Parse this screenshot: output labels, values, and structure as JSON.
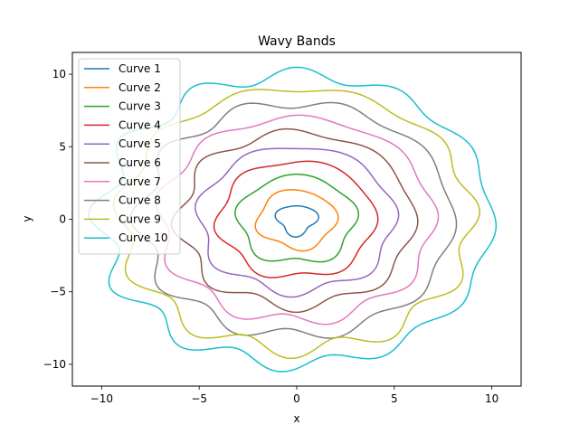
{
  "chart_data": {
    "type": "line",
    "title": "Wavy Bands",
    "xlabel": "x",
    "ylabel": "y",
    "xlim": [
      -11.5,
      11.5
    ],
    "ylim": [
      -11.5,
      11.5
    ],
    "xticks": [
      -10,
      -5,
      0,
      5,
      10
    ],
    "yticks": [
      -10,
      -5,
      0,
      5,
      10
    ],
    "xtick_labels": [
      "−10",
      "−5",
      "0",
      "5",
      "10"
    ],
    "ytick_labels": [
      "−10",
      "−5",
      "0",
      "5",
      "10"
    ],
    "grid": false,
    "legend_position": "upper-left",
    "series": [
      {
        "name": "Curve 1",
        "color": "#1f77b4",
        "r": 1.0,
        "wave_amp": 0.15,
        "wave_freq": 3,
        "phase": 0.2
      },
      {
        "name": "Curve 2",
        "color": "#ff7f0e",
        "r": 2.0,
        "wave_amp": 0.15,
        "wave_freq": 4,
        "phase": 0.5
      },
      {
        "name": "Curve 3",
        "color": "#2ca02c",
        "r": 3.0,
        "wave_amp": 0.2,
        "wave_freq": 5,
        "phase": 0.1
      },
      {
        "name": "Curve 4",
        "color": "#d62728",
        "r": 4.0,
        "wave_amp": 0.2,
        "wave_freq": 6,
        "phase": 0.9
      },
      {
        "name": "Curve 5",
        "color": "#9467bd",
        "r": 5.0,
        "wave_amp": 0.25,
        "wave_freq": 7,
        "phase": 0.4
      },
      {
        "name": "Curve 6",
        "color": "#8c564b",
        "r": 6.0,
        "wave_amp": 0.3,
        "wave_freq": 8,
        "phase": 1.3
      },
      {
        "name": "Curve 7",
        "color": "#e377c2",
        "r": 7.0,
        "wave_amp": 0.3,
        "wave_freq": 9,
        "phase": 0.7
      },
      {
        "name": "Curve 8",
        "color": "#7f7f7f",
        "r": 8.0,
        "wave_amp": 0.35,
        "wave_freq": 10,
        "phase": 1.8
      },
      {
        "name": "Curve 9",
        "color": "#bcbd22",
        "r": 9.0,
        "wave_amp": 0.4,
        "wave_freq": 11,
        "phase": 0.3
      },
      {
        "name": "Curve 10",
        "color": "#17becf",
        "r": 10.0,
        "wave_amp": 0.45,
        "wave_freq": 12,
        "phase": 2.1
      }
    ]
  }
}
